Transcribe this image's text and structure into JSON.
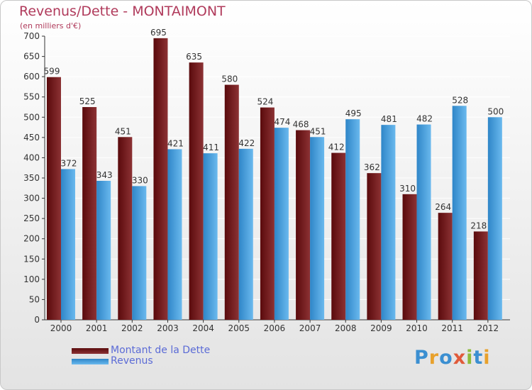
{
  "header": {
    "title": "Revenus/Dette - MONTAIMONT",
    "subtitle": "(en milliers d'€)"
  },
  "legend": {
    "items": [
      {
        "label": "Montant de la Dette",
        "color": "#7a1a1c"
      },
      {
        "label": "Revenus",
        "color": "#4aa3e2"
      }
    ]
  },
  "logo": {
    "text": "Proxiti"
  },
  "chart_data": {
    "type": "bar",
    "title": "Revenus/Dette - MONTAIMONT",
    "subtitle": "(en milliers d'€)",
    "categories": [
      "2000",
      "2001",
      "2002",
      "2003",
      "2004",
      "2005",
      "2006",
      "2007",
      "2008",
      "2009",
      "2010",
      "2011",
      "2012"
    ],
    "series": [
      {
        "name": "Montant de la Dette",
        "color": "#7a1a1c",
        "values": [
          599,
          525,
          451,
          695,
          635,
          580,
          524,
          468,
          412,
          362,
          310,
          264,
          218
        ]
      },
      {
        "name": "Revenus",
        "color": "#4aa3e2",
        "values": [
          372,
          343,
          330,
          421,
          411,
          422,
          474,
          451,
          495,
          481,
          482,
          528,
          500
        ]
      }
    ],
    "ylim": [
      0,
      700
    ],
    "yticks": [
      0,
      50,
      100,
      150,
      200,
      250,
      300,
      350,
      400,
      450,
      500,
      550,
      600,
      650,
      700
    ],
    "grid": true,
    "legend_position": "bottom-left"
  }
}
